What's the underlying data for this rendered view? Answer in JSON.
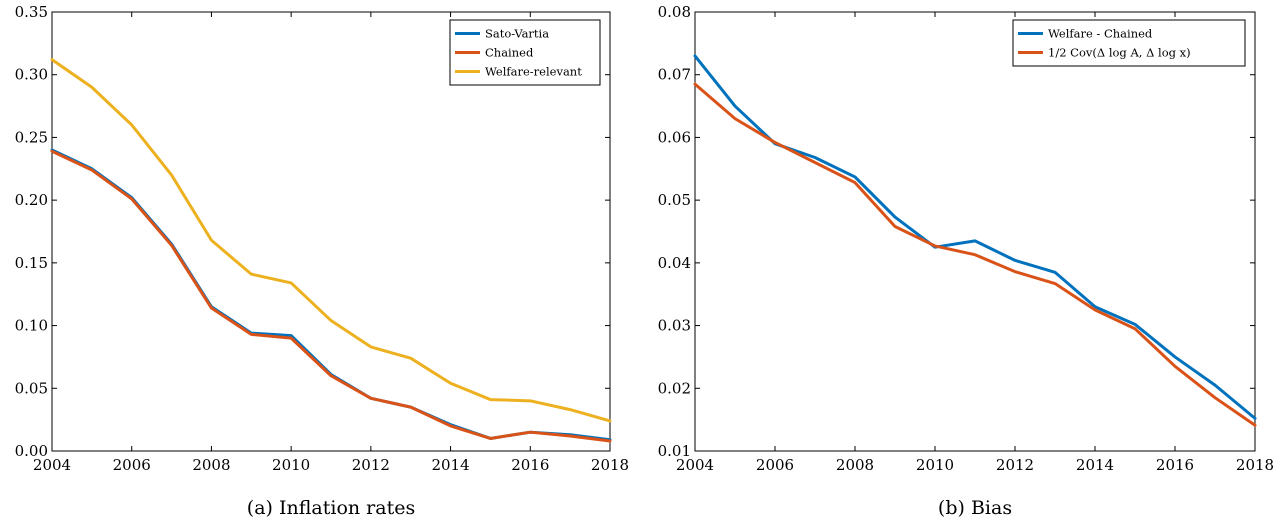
{
  "chart_data": [
    {
      "type": "line",
      "caption": "(a) Inflation rates",
      "x": [
        2004,
        2005,
        2006,
        2007,
        2008,
        2009,
        2010,
        2011,
        2012,
        2013,
        2014,
        2015,
        2016,
        2017,
        2018
      ],
      "xlim": [
        2004,
        2018
      ],
      "ylim": [
        0,
        0.35
      ],
      "xticks": [
        "2004",
        "2006",
        "2008",
        "2010",
        "2012",
        "2014",
        "2016",
        "2018"
      ],
      "yticks": [
        "0.00",
        "0.05",
        "0.10",
        "0.15",
        "0.20",
        "0.25",
        "0.30",
        "0.35"
      ],
      "grid": false,
      "legend": "top-right",
      "series": [
        {
          "name": "Sato-Vartia",
          "color": "#0072bd",
          "values": [
            0.24,
            0.225,
            0.202,
            0.165,
            0.115,
            0.094,
            0.092,
            0.061,
            0.042,
            0.035,
            0.021,
            0.01,
            0.015,
            0.013,
            0.009
          ]
        },
        {
          "name": "Chained",
          "color": "#d95319",
          "values": [
            0.239,
            0.224,
            0.201,
            0.164,
            0.114,
            0.093,
            0.09,
            0.06,
            0.042,
            0.035,
            0.02,
            0.01,
            0.015,
            0.012,
            0.008
          ]
        },
        {
          "name": "Welfare-relevant",
          "color": "#edb120",
          "values": [
            0.312,
            0.29,
            0.26,
            0.22,
            0.168,
            0.141,
            0.134,
            0.104,
            0.083,
            0.074,
            0.054,
            0.041,
            0.04,
            0.033,
            0.024
          ]
        }
      ]
    },
    {
      "type": "line",
      "caption": "(b) Bias",
      "x": [
        2004,
        2005,
        2006,
        2007,
        2008,
        2009,
        2010,
        2011,
        2012,
        2013,
        2014,
        2015,
        2016,
        2017,
        2018
      ],
      "xlim": [
        2004,
        2018
      ],
      "ylim": [
        0.01,
        0.08
      ],
      "xticks": [
        "2004",
        "2006",
        "2008",
        "2010",
        "2012",
        "2014",
        "2016",
        "2018"
      ],
      "yticks": [
        "0.01",
        "0.02",
        "0.03",
        "0.04",
        "0.05",
        "0.06",
        "0.07",
        "0.08"
      ],
      "grid": false,
      "legend": "top-right",
      "series": [
        {
          "name": "Welfare - Chained",
          "color": "#0072bd",
          "values": [
            0.073,
            0.065,
            0.059,
            0.0568,
            0.0537,
            0.0473,
            0.0425,
            0.0435,
            0.0404,
            0.0385,
            0.033,
            0.0302,
            0.025,
            0.0205,
            0.0152
          ]
        },
        {
          "name": "1/2 Cov(Δ log A, Δ log x)",
          "color": "#d95319",
          "values": [
            0.0685,
            0.063,
            0.0592,
            0.056,
            0.0528,
            0.0458,
            0.0427,
            0.0413,
            0.0386,
            0.0367,
            0.0325,
            0.0295,
            0.0235,
            0.0185,
            0.0141
          ]
        }
      ]
    }
  ]
}
